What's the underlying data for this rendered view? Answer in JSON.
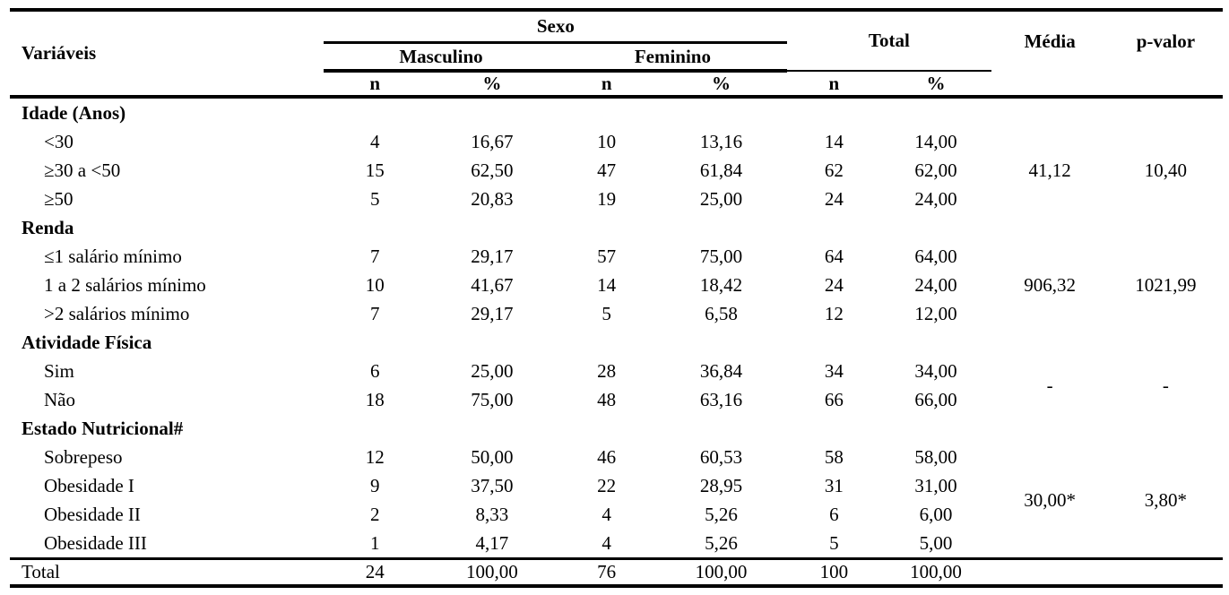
{
  "page": {
    "background_color": "#ffffff",
    "text_color": "#000000"
  },
  "table": {
    "header": {
      "variaveis": "Variáveis",
      "sexo": "Sexo",
      "masculino": "Masculino",
      "feminino": "Feminino",
      "total": "Total",
      "media": "Média",
      "p_valor": "p-valor",
      "n_label": "n",
      "pct_label": "%"
    },
    "sections": [
      {
        "title": "Idade (Anos)",
        "rows": [
          {
            "label": "<30",
            "values": [
              "4",
              "16,67",
              "10",
              "13,16",
              "14",
              "14,00"
            ]
          },
          {
            "label": "≥30 a <50",
            "values": [
              "15",
              "62,50",
              "47",
              "61,84",
              "62",
              "62,00"
            ]
          },
          {
            "label": "≥50",
            "values": [
              "5",
              "20,83",
              "19",
              "25,00",
              "24",
              "24,00"
            ]
          }
        ],
        "media": "41,12",
        "p_valor": "10,40"
      },
      {
        "title": "Renda",
        "rows": [
          {
            "label": "≤1 salário mínimo",
            "values": [
              "7",
              "29,17",
              "57",
              "75,00",
              "64",
              "64,00"
            ]
          },
          {
            "label": "1 a 2 salários mínimo",
            "values": [
              "10",
              "41,67",
              "14",
              "18,42",
              "24",
              "24,00"
            ]
          },
          {
            "label": ">2 salários mínimo",
            "values": [
              "7",
              "29,17",
              "5",
              "6,58",
              "12",
              "12,00"
            ]
          }
        ],
        "media": "906,32",
        "p_valor": "1021,99"
      },
      {
        "title": "Atividade Física",
        "rows": [
          {
            "label": "Sim",
            "values": [
              "6",
              "25,00",
              "28",
              "36,84",
              "34",
              "34,00"
            ]
          },
          {
            "label": "Não",
            "values": [
              "18",
              "75,00",
              "48",
              "63,16",
              "66",
              "66,00"
            ]
          }
        ],
        "media": "-",
        "p_valor": "-"
      },
      {
        "title": "Estado Nutricional#",
        "rows": [
          {
            "label": "Sobrepeso",
            "values": [
              "12",
              "50,00",
              "46",
              "60,53",
              "58",
              "58,00"
            ]
          },
          {
            "label": "Obesidade I",
            "values": [
              "9",
              "37,50",
              "22",
              "28,95",
              "31",
              "31,00"
            ]
          },
          {
            "label": "Obesidade II",
            "values": [
              "2",
              "8,33",
              "4",
              "5,26",
              "6",
              "6,00"
            ]
          },
          {
            "label": "Obesidade III",
            "values": [
              "1",
              "4,17",
              "4",
              "5,26",
              "5",
              "5,00"
            ]
          }
        ],
        "media": "30,00*",
        "p_valor": "3,80*"
      }
    ],
    "footer": {
      "label": "Total",
      "values": [
        "24",
        "100,00",
        "76",
        "100,00",
        "100",
        "100,00"
      ]
    }
  }
}
